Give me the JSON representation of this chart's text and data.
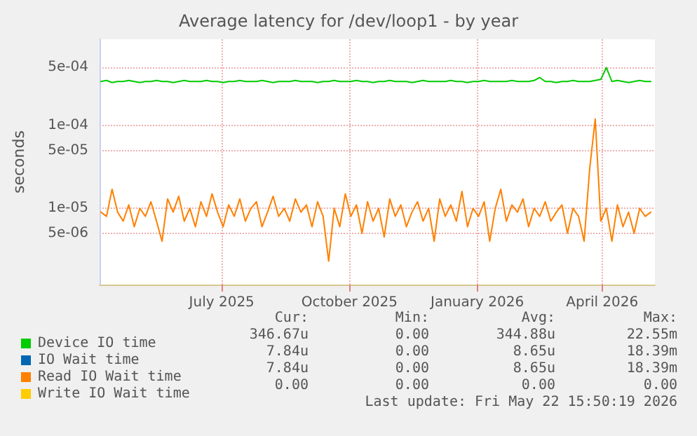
{
  "chart_data": {
    "type": "line",
    "title": "Average latency for /dev/loop1 - by year",
    "ylabel": "seconds",
    "x": [
      "2025-04-20",
      "2025-04-24",
      "2025-04-28",
      "2025-05-02",
      "2025-05-06",
      "2025-05-10",
      "2025-05-14",
      "2025-05-18",
      "2025-05-22",
      "2025-05-26",
      "2025-05-30",
      "2025-06-03",
      "2025-06-07",
      "2025-06-11",
      "2025-06-15",
      "2025-06-19",
      "2025-06-23",
      "2025-06-27",
      "2025-07-01",
      "2025-07-05",
      "2025-07-09",
      "2025-07-13",
      "2025-07-17",
      "2025-07-21",
      "2025-07-25",
      "2025-07-29",
      "2025-08-02",
      "2025-08-06",
      "2025-08-10",
      "2025-08-14",
      "2025-08-18",
      "2025-08-22",
      "2025-08-26",
      "2025-08-30",
      "2025-09-03",
      "2025-09-07",
      "2025-09-11",
      "2025-09-15",
      "2025-09-19",
      "2025-09-23",
      "2025-09-27",
      "2025-10-01",
      "2025-10-05",
      "2025-10-09",
      "2025-10-13",
      "2025-10-17",
      "2025-10-21",
      "2025-10-25",
      "2025-10-29",
      "2025-11-02",
      "2025-11-06",
      "2025-11-10",
      "2025-11-14",
      "2025-11-18",
      "2025-11-22",
      "2025-11-26",
      "2025-11-30",
      "2025-12-04",
      "2025-12-08",
      "2025-12-12",
      "2025-12-16",
      "2025-12-20",
      "2025-12-24",
      "2025-12-28",
      "2026-01-01",
      "2026-01-05",
      "2026-01-09",
      "2026-01-13",
      "2026-01-17",
      "2026-01-21",
      "2026-01-25",
      "2026-01-29",
      "2026-02-02",
      "2026-02-06",
      "2026-02-10",
      "2026-02-14",
      "2026-02-18",
      "2026-02-22",
      "2026-02-26",
      "2026-03-02",
      "2026-03-06",
      "2026-03-10",
      "2026-03-14",
      "2026-03-18",
      "2026-03-22",
      "2026-03-26",
      "2026-03-30",
      "2026-04-03",
      "2026-04-07",
      "2026-04-11",
      "2026-04-15",
      "2026-04-19",
      "2026-04-23",
      "2026-04-27",
      "2026-05-01",
      "2026-05-05",
      "2026-05-09",
      "2026-05-13",
      "2026-05-17",
      "2026-05-21"
    ],
    "series": [
      {
        "name": "Device IO time",
        "color": "#00cc00",
        "values": [
          0.00034,
          0.00035,
          0.00033,
          0.00034,
          0.00034,
          0.00035,
          0.00034,
          0.00033,
          0.00034,
          0.00034,
          0.00035,
          0.00034,
          0.00034,
          0.00033,
          0.00034,
          0.00035,
          0.00034,
          0.00034,
          0.00034,
          0.00035,
          0.00034,
          0.00034,
          0.00033,
          0.00034,
          0.00034,
          0.00035,
          0.00034,
          0.00034,
          0.00034,
          0.00035,
          0.00034,
          0.00033,
          0.00034,
          0.00034,
          0.00034,
          0.00035,
          0.00034,
          0.00034,
          0.00034,
          0.00033,
          0.00034,
          0.00034,
          0.00035,
          0.00034,
          0.00034,
          0.00034,
          0.00035,
          0.00034,
          0.00034,
          0.00033,
          0.00034,
          0.00034,
          0.00035,
          0.00034,
          0.00034,
          0.00034,
          0.00033,
          0.00034,
          0.00035,
          0.00034,
          0.00034,
          0.00034,
          0.00034,
          0.00035,
          0.00034,
          0.00034,
          0.00033,
          0.00034,
          0.00034,
          0.00035,
          0.00034,
          0.00034,
          0.00034,
          0.00034,
          0.00035,
          0.00034,
          0.00034,
          0.00034,
          0.00035,
          0.00038,
          0.00034,
          0.00034,
          0.00033,
          0.00034,
          0.00034,
          0.00035,
          0.00034,
          0.00034,
          0.00034,
          0.00035,
          0.00036,
          0.0005,
          0.00034,
          0.00035,
          0.00034,
          0.00033,
          0.00034,
          0.00035,
          0.00034,
          0.00034
        ]
      },
      {
        "name": "IO Wait time",
        "color": "#0066b3",
        "values": [
          null,
          null,
          null,
          null,
          null,
          null,
          null,
          null,
          null,
          null,
          null,
          null,
          null,
          null,
          null,
          null,
          null,
          null,
          null,
          null,
          null,
          null,
          null,
          null,
          null,
          null,
          null,
          null,
          null,
          null,
          null,
          null,
          null,
          null,
          null,
          null,
          null,
          null,
          null,
          null,
          null,
          null,
          null,
          null,
          null,
          null,
          null,
          null,
          null,
          null,
          null,
          null,
          null,
          null,
          null,
          null,
          null,
          null,
          null,
          null,
          null,
          null,
          null,
          null,
          null,
          null,
          null,
          null,
          null,
          null,
          null,
          null,
          null,
          null,
          null,
          null,
          null,
          null,
          null,
          null,
          null,
          null,
          null,
          null,
          null,
          null,
          null,
          null,
          null,
          null,
          null,
          null,
          null,
          null,
          null,
          null,
          null,
          null,
          null,
          null
        ]
      },
      {
        "name": "Read IO Wait time",
        "color": "#ff8000",
        "values": [
          9e-06,
          8e-06,
          1.7e-05,
          9e-06,
          7e-06,
          1.1e-05,
          6e-06,
          1e-05,
          8e-06,
          1.2e-05,
          7e-06,
          4e-06,
          1.3e-05,
          9e-06,
          1.4e-05,
          7e-06,
          1e-05,
          6e-06,
          1.2e-05,
          8e-06,
          1.5e-05,
          9e-06,
          6e-06,
          1.1e-05,
          8e-06,
          1.3e-05,
          7e-06,
          1e-05,
          1.2e-05,
          6e-06,
          9e-06,
          1.4e-05,
          8e-06,
          1e-05,
          7e-06,
          1.3e-05,
          9e-06,
          1.1e-05,
          6e-06,
          1.2e-05,
          8e-06,
          2.3e-06,
          1e-05,
          6e-06,
          1.5e-05,
          8e-06,
          1.1e-05,
          5e-06,
          1.2e-05,
          7e-06,
          1e-05,
          4.5e-06,
          1.3e-05,
          8e-06,
          1.1e-05,
          6e-06,
          9e-06,
          1.2e-05,
          7e-06,
          1e-05,
          4e-06,
          1.3e-05,
          8e-06,
          1.1e-05,
          7e-06,
          1.6e-05,
          6e-06,
          1e-05,
          8e-06,
          1.2e-05,
          4e-06,
          1e-05,
          1.7e-05,
          7e-06,
          1.1e-05,
          9e-06,
          1.3e-05,
          6e-06,
          1e-05,
          8e-06,
          1.2e-05,
          7e-06,
          9e-06,
          1.1e-05,
          5e-06,
          1e-05,
          8e-06,
          4e-06,
          3e-05,
          0.00012,
          7e-06,
          1e-05,
          4e-06,
          1.1e-05,
          6e-06,
          9e-06,
          5e-06,
          1e-05,
          8e-06,
          9e-06
        ]
      },
      {
        "name": "Write IO Wait time",
        "color": "#ffcc00",
        "values": [
          null,
          null,
          null,
          null,
          null,
          null,
          null,
          null,
          null,
          null,
          null,
          null,
          null,
          null,
          null,
          null,
          null,
          null,
          null,
          null,
          null,
          null,
          null,
          null,
          null,
          null,
          null,
          null,
          null,
          null,
          null,
          null,
          null,
          null,
          null,
          null,
          null,
          null,
          null,
          null,
          null,
          null,
          null,
          null,
          null,
          null,
          null,
          null,
          null,
          null,
          null,
          null,
          null,
          null,
          null,
          null,
          null,
          null,
          null,
          null,
          null,
          null,
          null,
          null,
          null,
          null,
          null,
          null,
          null,
          null,
          null,
          null,
          null,
          null,
          null,
          null,
          null,
          null,
          null,
          null,
          null,
          null,
          null,
          null,
          null,
          null,
          null,
          null,
          null,
          null,
          null,
          null,
          null,
          null,
          null,
          null,
          null,
          null,
          null,
          null
        ]
      }
    ],
    "xlim": [
      "2025-04-19",
      "2026-05-24"
    ],
    "xticks": [
      {
        "value": "2025-07-16",
        "label": "July 2025"
      },
      {
        "value": "2025-10-16",
        "label": "October 2025"
      },
      {
        "value": "2026-01-16",
        "label": "January 2026"
      },
      {
        "value": "2026-04-16",
        "label": "April 2026"
      }
    ],
    "ylim": [
      1.2e-06,
      0.0011
    ],
    "yticks": [
      {
        "value": 5e-06,
        "label": "5e-06"
      },
      {
        "value": 1e-05,
        "label": "1e-05"
      },
      {
        "value": 5e-05,
        "label": "5e-05"
      },
      {
        "value": 0.0001,
        "label": "1e-04"
      },
      {
        "value": 0.0005,
        "label": "5e-04"
      }
    ],
    "log": "y",
    "grid": true,
    "legend": "bottom left",
    "marker": "none",
    "line_style": "solid",
    "annotations": [
      "Cur:",
      "Min:",
      "Avg:",
      "Max:",
      "346.67u",
      "0.00",
      "344.88u",
      "22.55m",
      "7.84u",
      "0.00",
      "8.65u",
      "18.39m",
      "7.84u",
      "0.00",
      "8.65u",
      "18.39m",
      "0.00",
      "0.00",
      "0.00",
      "0.00",
      "Last update: Fri May 22 15:50:19 2026"
    ]
  }
}
